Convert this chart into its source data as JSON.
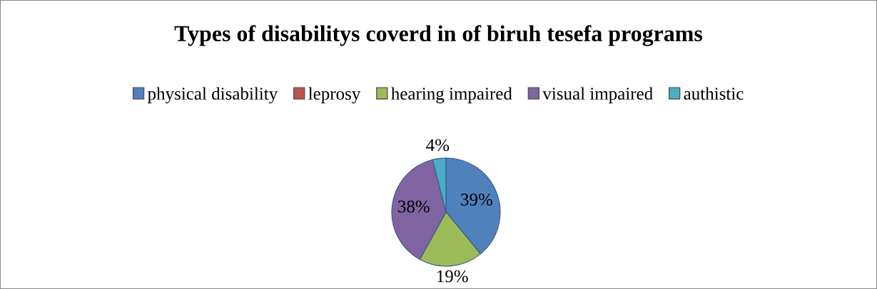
{
  "chart_data": {
    "type": "pie",
    "title": "Types of disabilitys coverd in of biruh tesefa programs",
    "categories": [
      "physical disability",
      "leprosy",
      "hearing impaired",
      "visual impaired",
      "authistic"
    ],
    "values": [
      39,
      0,
      19,
      38,
      4
    ],
    "colors": [
      "#4f81bd",
      "#c0504d",
      "#9bbb59",
      "#8064a2",
      "#4bacc6"
    ],
    "value_labels": [
      "39%",
      null,
      "19%",
      "38%",
      "4%"
    ],
    "legend": "top"
  }
}
